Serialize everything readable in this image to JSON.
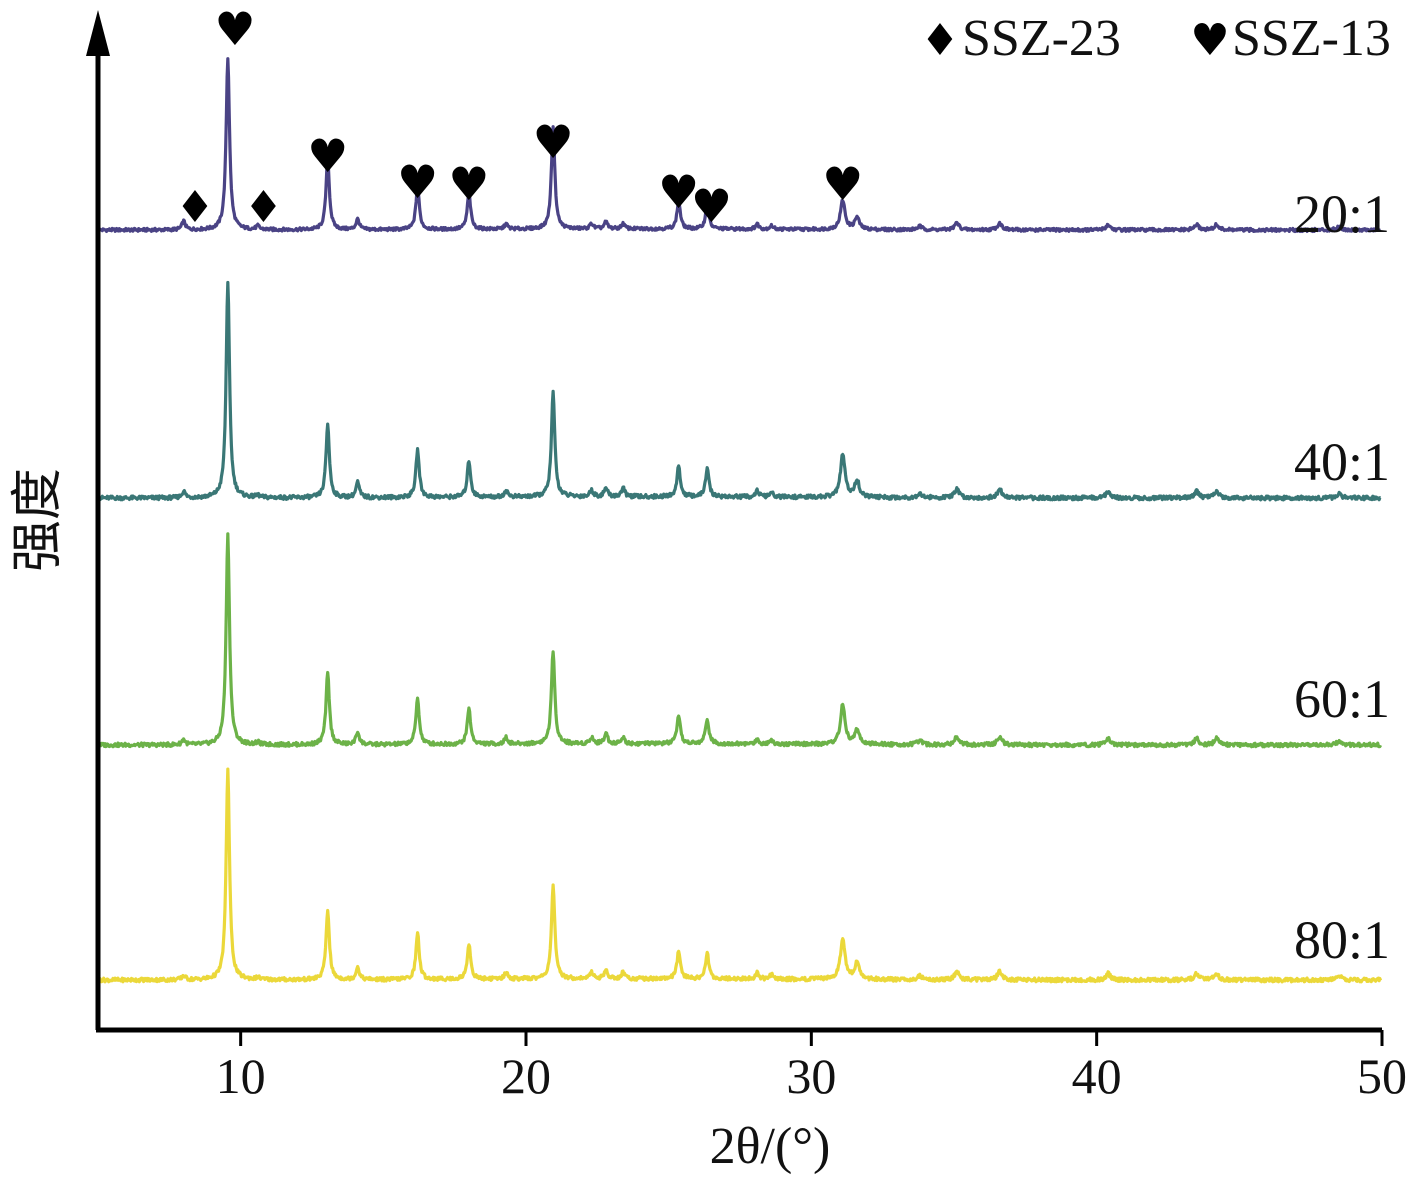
{
  "chart_data": {
    "type": "line",
    "xlabel": "2θ/(°)",
    "ylabel": "强度",
    "xlim": [
      5,
      50
    ],
    "x_ticks": [
      10,
      20,
      30,
      40,
      50
    ],
    "y_axis_ticks": "none",
    "grid": false,
    "legend": {
      "placement": "top-right",
      "entries": [
        {
          "symbol": "♦",
          "label": "SSZ-23"
        },
        {
          "symbol": "♥",
          "label": "SSZ-13"
        }
      ]
    },
    "series": [
      {
        "name": "20:1",
        "color": "#4a4385"
      },
      {
        "name": "40:1",
        "color": "#3a7776"
      },
      {
        "name": "60:1",
        "color": "#6cb248"
      },
      {
        "name": "80:1",
        "color": "#ebd83a"
      }
    ],
    "peaks": [
      {
        "x": 8.0,
        "h": [
          0.05,
          0.03,
          0.025,
          0.02
        ]
      },
      {
        "x": 9.55,
        "h": [
          1.0,
          1.0,
          1.0,
          1.0
        ]
      },
      {
        "x": 10.6,
        "h": [
          0.02,
          0.01,
          0.01,
          0.01
        ]
      },
      {
        "x": 13.05,
        "h": [
          0.41,
          0.34,
          0.34,
          0.33
        ]
      },
      {
        "x": 14.1,
        "h": [
          0.06,
          0.07,
          0.06,
          0.06
        ]
      },
      {
        "x": 16.2,
        "h": [
          0.25,
          0.22,
          0.22,
          0.22
        ]
      },
      {
        "x": 18.0,
        "h": [
          0.21,
          0.17,
          0.17,
          0.17
        ]
      },
      {
        "x": 19.3,
        "h": [
          0.03,
          0.03,
          0.03,
          0.03
        ]
      },
      {
        "x": 20.95,
        "h": [
          0.6,
          0.48,
          0.44,
          0.44
        ]
      },
      {
        "x": 22.3,
        "h": [
          0.03,
          0.03,
          0.03,
          0.03
        ]
      },
      {
        "x": 22.8,
        "h": [
          0.04,
          0.04,
          0.05,
          0.04
        ]
      },
      {
        "x": 23.4,
        "h": [
          0.03,
          0.04,
          0.03,
          0.03
        ]
      },
      {
        "x": 25.35,
        "h": [
          0.16,
          0.14,
          0.13,
          0.13
        ]
      },
      {
        "x": 26.35,
        "h": [
          0.14,
          0.13,
          0.12,
          0.12
        ]
      },
      {
        "x": 28.1,
        "h": [
          0.03,
          0.03,
          0.02,
          0.03
        ]
      },
      {
        "x": 28.6,
        "h": [
          0.02,
          0.02,
          0.02,
          0.02
        ]
      },
      {
        "x": 31.1,
        "h": [
          0.17,
          0.2,
          0.19,
          0.2
        ]
      },
      {
        "x": 31.6,
        "h": [
          0.07,
          0.08,
          0.07,
          0.08
        ]
      },
      {
        "x": 33.8,
        "h": [
          0.02,
          0.02,
          0.02,
          0.02
        ]
      },
      {
        "x": 35.1,
        "h": [
          0.04,
          0.04,
          0.04,
          0.04
        ]
      },
      {
        "x": 36.6,
        "h": [
          0.04,
          0.04,
          0.04,
          0.04
        ]
      },
      {
        "x": 40.4,
        "h": [
          0.03,
          0.03,
          0.03,
          0.03
        ]
      },
      {
        "x": 43.5,
        "h": [
          0.03,
          0.03,
          0.03,
          0.03
        ]
      },
      {
        "x": 44.2,
        "h": [
          0.03,
          0.03,
          0.03,
          0.03
        ]
      },
      {
        "x": 48.5,
        "h": [
          0.02,
          0.02,
          0.02,
          0.02
        ]
      }
    ],
    "annotations": [
      {
        "symbol": "♦",
        "phase": "SSZ-23",
        "x": 8.4
      },
      {
        "symbol": "♥",
        "phase": "SSZ-13",
        "x": 9.8
      },
      {
        "symbol": "♦",
        "phase": "SSZ-23",
        "x": 10.8
      },
      {
        "symbol": "♥",
        "phase": "SSZ-13",
        "x": 13.05
      },
      {
        "symbol": "♥",
        "phase": "SSZ-13",
        "x": 16.2
      },
      {
        "symbol": "♥",
        "phase": "SSZ-13",
        "x": 18.0
      },
      {
        "symbol": "♥",
        "phase": "SSZ-13",
        "x": 20.95
      },
      {
        "symbol": "♥",
        "phase": "SSZ-13",
        "x": 25.35
      },
      {
        "symbol": "♥",
        "phase": "SSZ-13",
        "x": 26.5
      },
      {
        "symbol": "♥",
        "phase": "SSZ-13",
        "x": 31.1
      }
    ]
  }
}
